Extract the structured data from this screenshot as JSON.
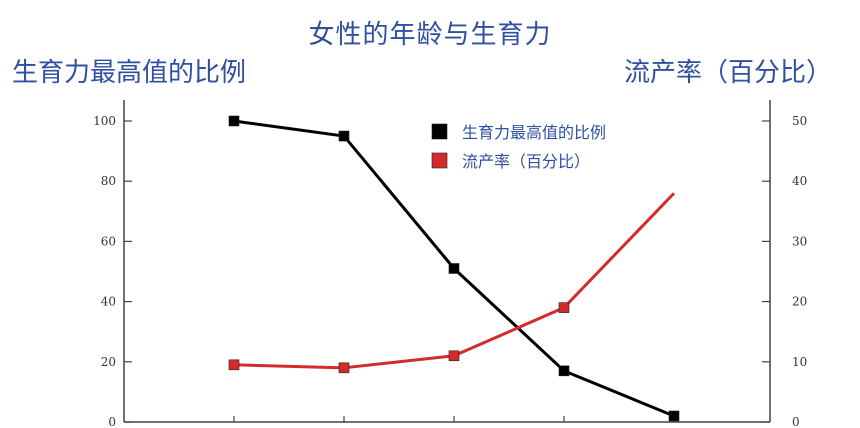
{
  "chart_data": {
    "type": "line",
    "title": "女性的年龄与生育力",
    "ylabel_left": "生育力最高值的比例",
    "ylabel_right": "流产率（百分比）",
    "x": [
      1,
      2,
      3,
      4,
      5
    ],
    "y_left_range": [
      0,
      100
    ],
    "y_left_ticks": [
      "0",
      "20",
      "40",
      "60",
      "80",
      "100"
    ],
    "y_right_range": [
      0,
      50
    ],
    "y_right_ticks": [
      "0",
      "10",
      "20",
      "30",
      "40",
      "50"
    ],
    "legend_position": "top-right",
    "series": [
      {
        "name": "生育力最高值的比例",
        "axis": "left",
        "color": "#000000",
        "values": [
          100,
          95,
          51,
          17,
          2
        ]
      },
      {
        "name": "流产率（百分比）",
        "axis": "right",
        "color": "#d42a2a",
        "values": [
          9.5,
          9,
          11,
          19,
          38
        ]
      }
    ]
  }
}
